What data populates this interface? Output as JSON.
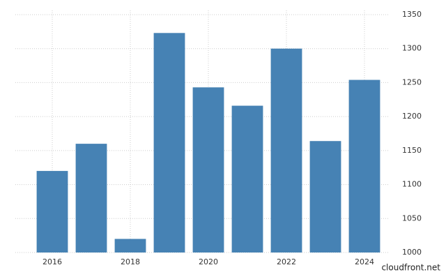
{
  "chart_data": {
    "type": "bar",
    "categories": [
      "2016",
      null,
      "2018",
      null,
      "2020",
      null,
      "2022",
      null,
      "2024"
    ],
    "values": [
      1120,
      1160,
      1020,
      1323,
      1243,
      1216,
      1300,
      1164,
      1254
    ],
    "color": "#4682b4",
    "ylim": [
      1000,
      1350
    ],
    "yticks": [
      1000,
      1050,
      1100,
      1150,
      1200,
      1250,
      1300,
      1350
    ],
    "grid": true,
    "watermark": "cloudfront.net"
  }
}
